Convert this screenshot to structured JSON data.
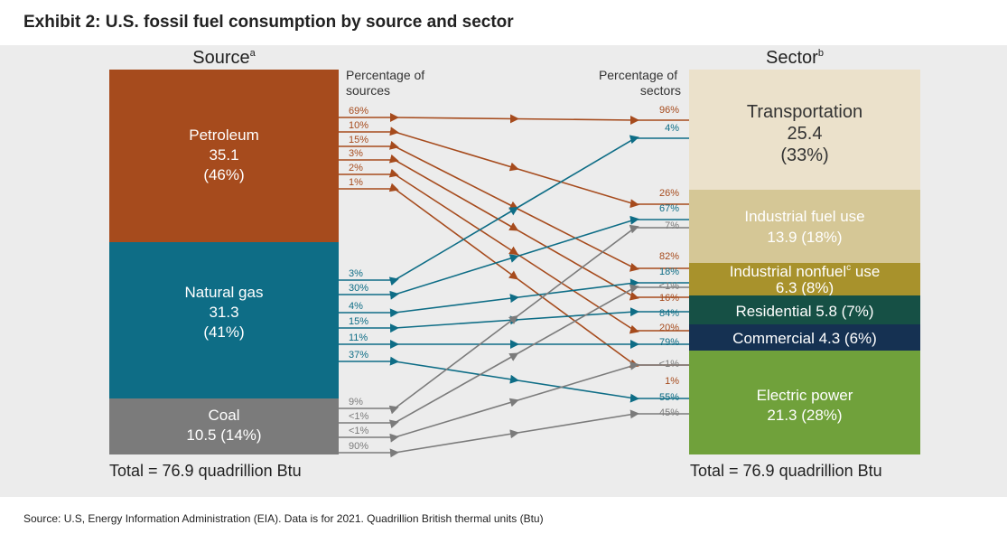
{
  "title": "Exhibit 2: U.S. fossil fuel consumption by source and sector",
  "source_heading": "Source",
  "source_sup": "a",
  "sector_heading": "Sector",
  "sector_sup": "b",
  "pct_sources_label": [
    "Percentage of",
    "sources"
  ],
  "pct_sectors_label": [
    "Percentage of",
    "sectors"
  ],
  "total_left": "Total = 76.9 quadrillion Btu",
  "total_right": "Total = 76.9 quadrillion Btu",
  "footer": "Source: U.S, Energy Information Administration (EIA). Data is for 2021. Quadrillion British thermal units (Btu)",
  "colors": {
    "petroleum": "#a64b1d",
    "natural_gas": "#0e6d86",
    "coal": "#7b7b7b",
    "transportation": "#ebe1cb",
    "industrial_fuel": "#d5c796",
    "industrial_nonfuel": "#a8922c",
    "residential": "#165045",
    "commercial": "#153152",
    "electric": "#70a13b"
  },
  "sources": [
    {
      "id": "petroleum",
      "name": "Petroleum",
      "value": "35.1",
      "share": "(46%)"
    },
    {
      "id": "natural_gas",
      "name": "Natural gas",
      "value": "31.3",
      "share": "(41%)"
    },
    {
      "id": "coal",
      "name": "Coal",
      "value": "10.5 (14%)"
    }
  ],
  "sectors": [
    {
      "id": "transportation",
      "line1": "Transportation",
      "line2": "25.4",
      "line3": "(33%)"
    },
    {
      "id": "industrial_fuel",
      "line1": "Industrial fuel use",
      "line2": "13.9 (18%)"
    },
    {
      "id": "industrial_nonfuel",
      "line1_pre": "Industrial nonfuel",
      "line1_sup": "c",
      "line1_post": " use",
      "line2": "6.3 (8%)"
    },
    {
      "id": "residential",
      "line1": "Residential 5.8 (7%)"
    },
    {
      "id": "commercial",
      "line1": "Commercial 4.3 (6%)"
    },
    {
      "id": "electric",
      "line1": "Electric power",
      "line2": "21.3 (28%)"
    }
  ],
  "flows": [
    {
      "source": "petroleum",
      "sector": "transportation",
      "pct_of_source": "69%",
      "pct_of_sector": "96%"
    },
    {
      "source": "petroleum",
      "sector": "industrial_fuel",
      "pct_of_source": "10%",
      "pct_of_sector": "26%"
    },
    {
      "source": "petroleum",
      "sector": "industrial_nonfuel",
      "pct_of_source": "15%",
      "pct_of_sector": "82%"
    },
    {
      "source": "petroleum",
      "sector": "residential",
      "pct_of_source": "3%",
      "pct_of_sector": "16%"
    },
    {
      "source": "petroleum",
      "sector": "commercial",
      "pct_of_source": "2%",
      "pct_of_sector": "20%"
    },
    {
      "source": "petroleum",
      "sector": "electric",
      "pct_of_source": "1%",
      "pct_of_sector": "1%"
    },
    {
      "source": "natural_gas",
      "sector": "transportation",
      "pct_of_source": "3%",
      "pct_of_sector": "4%"
    },
    {
      "source": "natural_gas",
      "sector": "industrial_fuel",
      "pct_of_source": "30%",
      "pct_of_sector": "67%"
    },
    {
      "source": "natural_gas",
      "sector": "industrial_nonfuel",
      "pct_of_source": "4%",
      "pct_of_sector": "18%"
    },
    {
      "source": "natural_gas",
      "sector": "residential",
      "pct_of_source": "15%",
      "pct_of_sector": "84%"
    },
    {
      "source": "natural_gas",
      "sector": "commercial",
      "pct_of_source": "11%",
      "pct_of_sector": "79%"
    },
    {
      "source": "natural_gas",
      "sector": "electric",
      "pct_of_source": "37%",
      "pct_of_sector": "55%"
    },
    {
      "source": "coal",
      "sector": "industrial_fuel",
      "pct_of_source": "9%",
      "pct_of_sector": "7%"
    },
    {
      "source": "coal",
      "sector": "industrial_nonfuel",
      "pct_of_source": "<1%",
      "pct_of_sector": "<1%"
    },
    {
      "source": "coal",
      "sector": "commercial",
      "pct_of_source": "<1%",
      "pct_of_sector": "<1%"
    },
    {
      "source": "coal",
      "sector": "electric",
      "pct_of_source": "90%",
      "pct_of_sector": "45%"
    }
  ]
}
